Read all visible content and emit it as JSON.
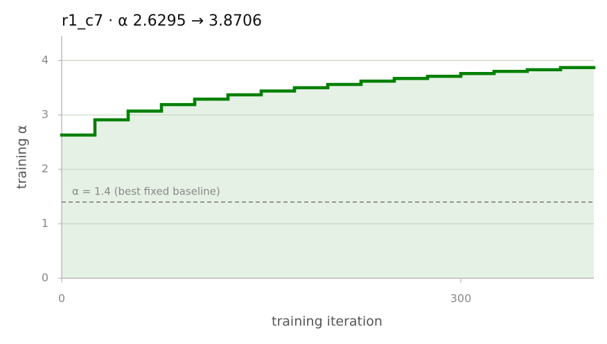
{
  "chart_data": {
    "type": "step",
    "title": "r1_c7   ·   α 2.6295 → 3.8706",
    "xlabel": "training iteration",
    "ylabel": "training α",
    "x": [
      0,
      25,
      50,
      75,
      100,
      125,
      150,
      175,
      200,
      225,
      250,
      275,
      300,
      325,
      350,
      375
    ],
    "series": [
      {
        "color": "#008000",
        "fill": "#e5f1e5",
        "values": [
          2.6295,
          2.91,
          3.07,
          3.19,
          3.29,
          3.37,
          3.44,
          3.5,
          3.56,
          3.62,
          3.67,
          3.71,
          3.76,
          3.8,
          3.83,
          3.8706
        ]
      }
    ],
    "reference_line": {
      "value": 1.4,
      "label": "α = 1.4 (best fixed baseline)",
      "color": "#888888"
    },
    "xlim": [
      0,
      400
    ],
    "ylim": [
      0,
      4.45
    ],
    "xticks": [
      0,
      300
    ],
    "yticks": [
      0,
      1,
      2,
      3,
      4
    ],
    "grid": true
  }
}
